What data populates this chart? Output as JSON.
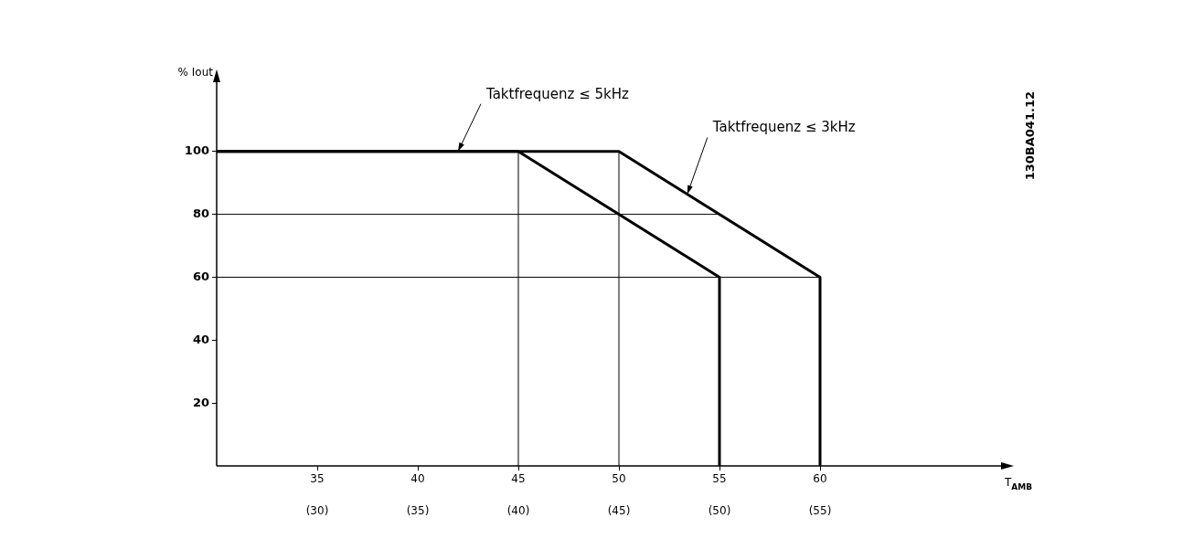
{
  "chart_data": {
    "type": "line",
    "ylabel": "% Iout",
    "xlabel": "T$_{AMB}$",
    "xlim": [
      30,
      69
    ],
    "xticks": [
      35,
      40,
      45,
      50,
      55,
      60
    ],
    "x2lim": [
      25,
      64
    ],
    "x2ticks": [
      {
        "value": 30,
        "label": "(30)"
      },
      {
        "value": 35,
        "label": "(35)"
      },
      {
        "value": 40,
        "label": "(40)"
      },
      {
        "value": 45,
        "label": "(45)"
      },
      {
        "value": 50,
        "label": "(50)"
      },
      {
        "value": 55,
        "label": "(55)"
      }
    ],
    "ylim": [
      0,
      122
    ],
    "yticks": [
      20,
      40,
      60,
      80,
      100
    ],
    "series": [
      {
        "name": "Taktfrequenz ≤ 5kHz",
        "color": "#000000",
        "x": [
          30,
          45,
          55,
          55
        ],
        "values": [
          100,
          100,
          60,
          0
        ]
      },
      {
        "name": "Taktfrequenz ≤ 3kHz",
        "color": "#000000",
        "x": [
          30,
          50,
          60,
          60
        ],
        "values": [
          100,
          100,
          60,
          0
        ]
      }
    ],
    "ref_lines": [
      {
        "axis": "x",
        "value": 45,
        "color": "#000000"
      },
      {
        "axis": "x",
        "value": 50,
        "color": "#000000"
      },
      {
        "axis": "y",
        "value": 80,
        "color": "#000000"
      },
      {
        "axis": "y",
        "value": 60,
        "color": "#000000"
      }
    ],
    "annotations": [
      "130BA041.12"
    ],
    "legend": false,
    "grid": false
  }
}
